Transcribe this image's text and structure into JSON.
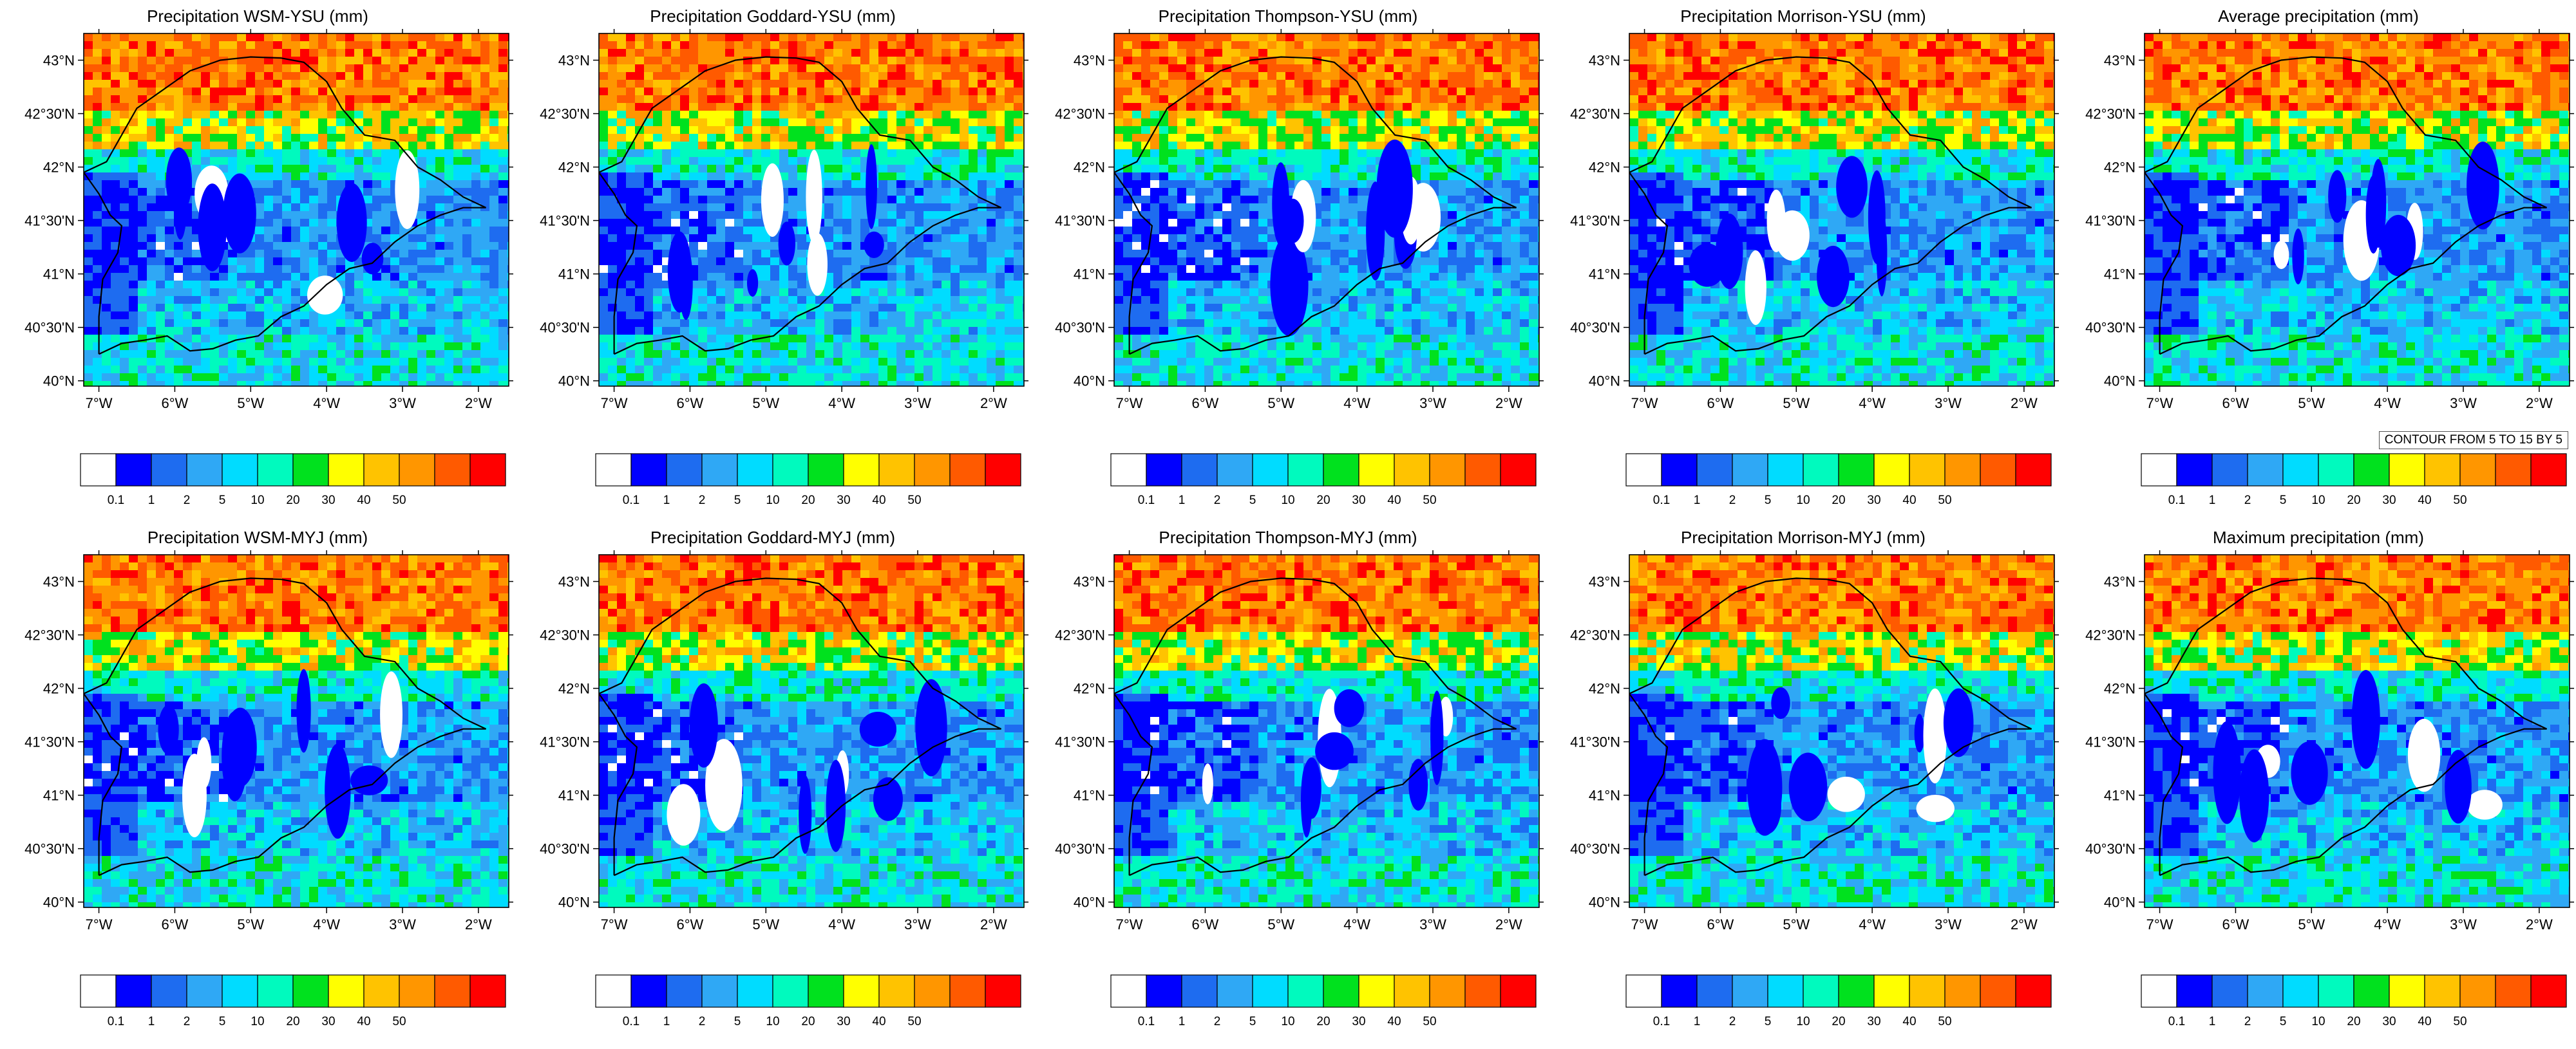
{
  "chart_data": {
    "type": "heatmap",
    "colorbar": {
      "levels": [
        "0.1",
        "1",
        "2",
        "5",
        "10",
        "20",
        "30",
        "40",
        "50"
      ],
      "colors": [
        "#ffffff",
        "#0000ff",
        "#1e6cf0",
        "#2fa8f5",
        "#00dcff",
        "#00fabe",
        "#00e11e",
        "#ffff00",
        "#ffc300",
        "#ff9600",
        "#ff5a00",
        "#ff0000"
      ]
    },
    "x_ticks": [
      "7°W",
      "6°W",
      "5°W",
      "4°W",
      "3°W",
      "2°W"
    ],
    "y_ticks": [
      "43°N",
      "42°30'N",
      "42°N",
      "41°30'N",
      "41°N",
      "40°30'N",
      "40°N"
    ],
    "xlim": [
      -7.2,
      -1.6
    ],
    "ylim": [
      39.95,
      43.25
    ],
    "panels": [
      {
        "title": "Precipitation WSM-YSU (mm)"
      },
      {
        "title": "Precipitation Goddard-YSU (mm)"
      },
      {
        "title": "Precipitation Thompson-YSU (mm)"
      },
      {
        "title": "Precipitation Morrison-YSU (mm)"
      },
      {
        "title": "Average precipitation (mm)",
        "contour_note": "CONTOUR FROM 5 TO 15 BY 5"
      },
      {
        "title": "Precipitation WSM-MYJ (mm)"
      },
      {
        "title": "Precipitation Goddard-MYJ (mm)"
      },
      {
        "title": "Precipitation Thompson-MYJ (mm)"
      },
      {
        "title": "Precipitation Morrison-MYJ (mm)"
      },
      {
        "title": "Maximum precipitation (mm)"
      }
    ]
  }
}
